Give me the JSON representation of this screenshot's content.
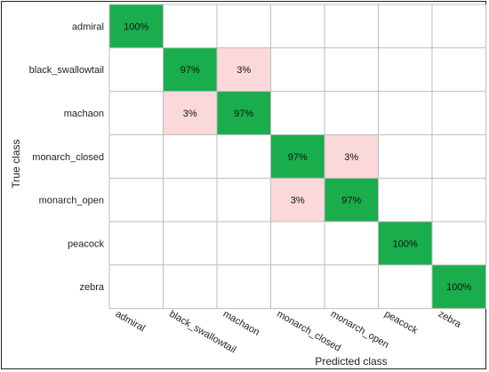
{
  "chart_data": {
    "type": "heatmap",
    "xlabel": "Predicted class",
    "ylabel": "True class",
    "rows": [
      "admiral",
      "black_swallowtail",
      "machaon",
      "monarch_closed",
      "monarch_open",
      "peacock",
      "zebra"
    ],
    "cols": [
      "admiral",
      "black_swallowtail",
      "machaon",
      "monarch_closed",
      "monarch_open",
      "peacock",
      "zebra"
    ],
    "values": [
      [
        100,
        0,
        0,
        0,
        0,
        0,
        0
      ],
      [
        0,
        97,
        3,
        0,
        0,
        0,
        0
      ],
      [
        0,
        3,
        97,
        0,
        0,
        0,
        0
      ],
      [
        0,
        0,
        0,
        97,
        3,
        0,
        0
      ],
      [
        0,
        0,
        0,
        3,
        97,
        0,
        0
      ],
      [
        0,
        0,
        0,
        0,
        0,
        100,
        0
      ],
      [
        0,
        0,
        0,
        0,
        0,
        0,
        100
      ]
    ],
    "value_suffix": "%",
    "colors": {
      "correct": "#19ad4c",
      "error": "#fbd9db",
      "empty": "#ffffff",
      "grid": "#bdbdbd"
    }
  }
}
